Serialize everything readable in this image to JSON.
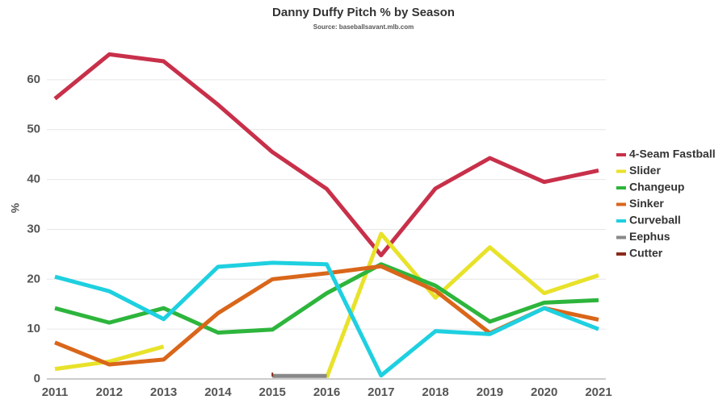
{
  "chart_data": {
    "type": "line",
    "title": "Danny Duffy Pitch % by Season",
    "subtitle": "Source: baseballsavant.mlb.com",
    "y_label": "%",
    "categories": [
      "2011",
      "2012",
      "2013",
      "2014",
      "2015",
      "2016",
      "2017",
      "2018",
      "2019",
      "2020",
      "2021"
    ],
    "ylim": [
      0,
      65
    ],
    "yticks": [
      0,
      10,
      20,
      30,
      40,
      50,
      60
    ],
    "grid": true,
    "legend": "right",
    "series": [
      {
        "name": "4-Seam Fastball",
        "color": "#c8304a",
        "values": [
          56.2,
          65.1,
          63.7,
          55.0,
          45.5,
          38.1,
          24.8,
          38.2,
          44.3,
          39.5,
          41.8
        ]
      },
      {
        "name": "Slider",
        "color": "#e8e22a",
        "values": [
          2.0,
          3.5,
          6.5,
          null,
          null,
          0.3,
          29.1,
          16.3,
          26.4,
          17.2,
          20.8
        ]
      },
      {
        "name": "Changeup",
        "color": "#2db53c",
        "values": [
          14.2,
          11.3,
          14.2,
          9.3,
          9.9,
          17.2,
          23.0,
          18.7,
          11.5,
          15.3,
          15.8
        ]
      },
      {
        "name": "Sinker",
        "color": "#d9661a",
        "values": [
          7.3,
          2.9,
          3.9,
          13.2,
          20.0,
          21.2,
          22.6,
          17.7,
          9.2,
          14.2,
          11.9
        ]
      },
      {
        "name": "Curveball",
        "color": "#1ed0e0",
        "values": [
          20.5,
          17.6,
          12.0,
          22.5,
          23.3,
          23.0,
          0.7,
          9.6,
          9.0,
          14.2,
          10.0
        ]
      },
      {
        "name": "Eephus",
        "color": "#888888",
        "values": [
          null,
          null,
          null,
          null,
          0.6,
          0.6,
          null,
          null,
          null,
          null,
          null
        ]
      },
      {
        "name": "Cutter",
        "color": "#8b2a1a",
        "values": [
          null,
          null,
          null,
          null,
          0.8,
          null,
          null,
          null,
          null,
          null,
          null
        ]
      }
    ]
  }
}
